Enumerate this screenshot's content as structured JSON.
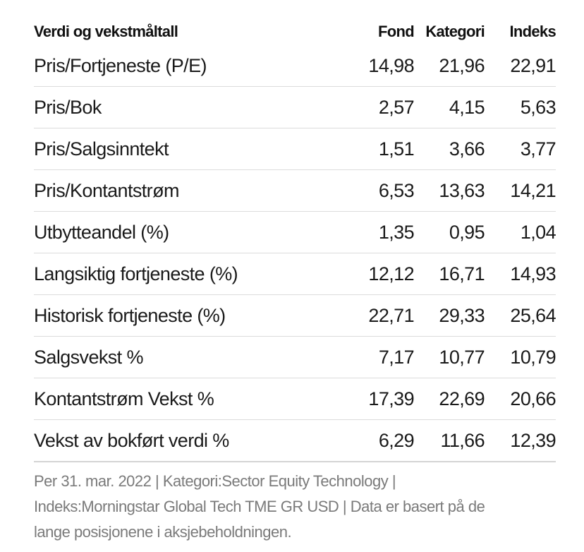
{
  "table": {
    "headers": {
      "label": "Verdi og vekstmåltall",
      "fund": "Fond",
      "category": "Kategori",
      "index": "Indeks"
    },
    "rows": [
      {
        "label": "Pris/Fortjeneste (P/E)",
        "fund": "14,98",
        "category": "21,96",
        "index": "22,91"
      },
      {
        "label": "Pris/Bok",
        "fund": "2,57",
        "category": "4,15",
        "index": "5,63"
      },
      {
        "label": "Pris/Salgsinntekt",
        "fund": "1,51",
        "category": "3,66",
        "index": "3,77"
      },
      {
        "label": "Pris/Kontantstrøm",
        "fund": "6,53",
        "category": "13,63",
        "index": "14,21"
      },
      {
        "label": "Utbytteandel (%)",
        "fund": "1,35",
        "category": "0,95",
        "index": "1,04"
      },
      {
        "label": "Langsiktig fortjeneste (%)",
        "fund": "12,12",
        "category": "16,71",
        "index": "14,93"
      },
      {
        "label": "Historisk fortjeneste (%)",
        "fund": "22,71",
        "category": "29,33",
        "index": "25,64"
      },
      {
        "label": "Salgsvekst %",
        "fund": "7,17",
        "category": "10,77",
        "index": "10,79"
      },
      {
        "label": "Kontantstrøm Vekst %",
        "fund": "17,39",
        "category": "22,69",
        "index": "20,66"
      },
      {
        "label": "Vekst av bokført verdi %",
        "fund": "6,29",
        "category": "11,66",
        "index": "12,39"
      }
    ]
  },
  "footnote": {
    "lines": [
      "Per 31. mar. 2022 | Kategori:Sector Equity Technology |",
      "Indeks:Morningstar Global Tech TME GR USD | Data er basert på de",
      "lange posisjonene i aksjebeholdningen."
    ]
  }
}
